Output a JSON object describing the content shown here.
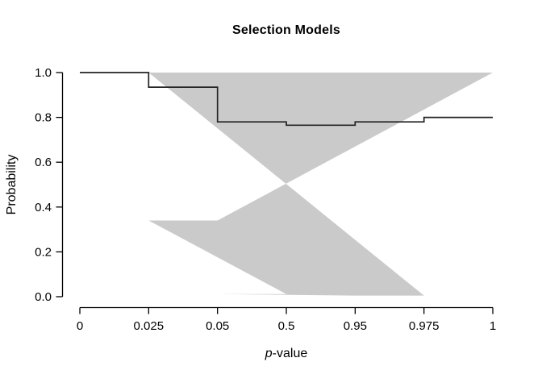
{
  "chart_data": {
    "type": "line",
    "subtype": "step-function-with-confidence-band",
    "title": "Selection Models",
    "xlabel": "p-value",
    "xlabel_italic_part": "p",
    "xlabel_plain_part": "-value",
    "ylabel": "Probability",
    "x_tick_labels": [
      "0",
      "0.025",
      "0.05",
      "0.5",
      "0.95",
      "0.975",
      "1"
    ],
    "x_axis_note": "ticks evenly spaced (ordinal p-value cutpoints)",
    "y_ticks": [
      0.0,
      0.2,
      0.4,
      0.6,
      0.8,
      1.0
    ],
    "y_tick_labels": [
      "0.0",
      "0.2",
      "0.4",
      "0.6",
      "0.8",
      "1.0"
    ],
    "ylim": [
      0,
      1
    ],
    "grid": false,
    "legend": null,
    "segments": [
      {
        "from": "0",
        "to": "0.025",
        "estimate": 1.0,
        "ci_lower": 1.0,
        "ci_upper": 1.0
      },
      {
        "from": "0.025",
        "to": "0.05",
        "estimate": 0.935,
        "ci_lower": 0.34,
        "ci_upper": 1.0
      },
      {
        "from": "0.05",
        "to": "0.5",
        "estimate": 0.78,
        "ci_lower": 0.012,
        "ci_upper": 1.0
      },
      {
        "from": "0.5",
        "to": "0.95",
        "estimate": 0.765,
        "ci_lower": 0.005,
        "ci_upper": 1.0
      },
      {
        "from": "0.95",
        "to": "0.975",
        "estimate": 0.78,
        "ci_lower": 0.005,
        "ci_upper": 1.0
      },
      {
        "from": "0.975",
        "to": "1",
        "estimate": 0.8,
        "ci_lower": 0.005,
        "ci_upper": 1.0
      }
    ],
    "colors": {
      "band": "#cacaca",
      "line": "#222222",
      "axis": "#000000",
      "background": "#ffffff"
    }
  }
}
